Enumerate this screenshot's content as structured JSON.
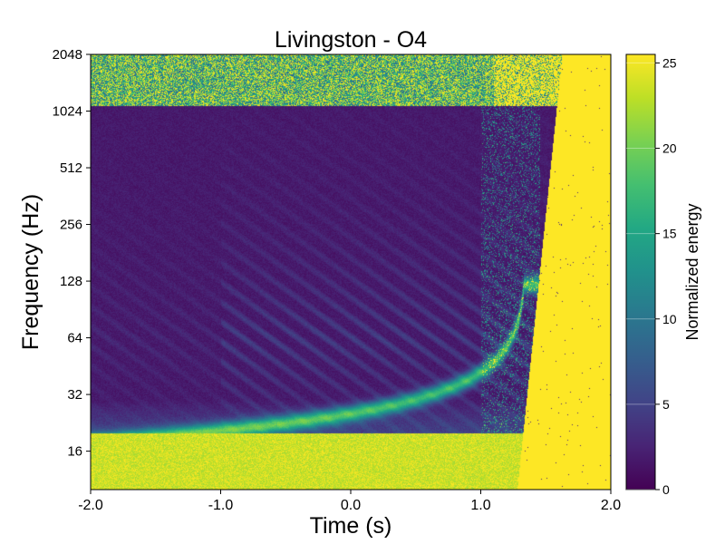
{
  "chart_data": {
    "type": "heatmap",
    "title": "Livingston - O4",
    "xlabel": "Time (s)",
    "ylabel": "Frequency (Hz)",
    "x_ticks": [
      "-2.0",
      "-1.0",
      "0.0",
      "1.0",
      "2.0"
    ],
    "x_tick_values": [
      -2.0,
      -1.0,
      0.0,
      1.0,
      2.0
    ],
    "xlim": [
      -2.0,
      2.0
    ],
    "y_scale": "log2",
    "y_ticks": [
      "16",
      "32",
      "64",
      "128",
      "256",
      "512",
      "1024",
      "2048"
    ],
    "y_tick_values": [
      16,
      32,
      64,
      128,
      256,
      512,
      1024,
      2048
    ],
    "ylim": [
      10,
      2048
    ],
    "colorbar": {
      "label": "Normalized energy",
      "ticks": [
        "0",
        "5",
        "10",
        "15",
        "20",
        "25"
      ],
      "tick_values": [
        0,
        5,
        10,
        15,
        20,
        25
      ],
      "range": [
        0,
        25.5
      ],
      "colormap": "viridis"
    },
    "features": {
      "chirp_end_time": 1.2,
      "bright_region_after_time": 1.3,
      "high_freq_noise_band_hz": [
        1100,
        2048
      ],
      "low_freq_bright_below_hz": 20
    },
    "grid": false,
    "legend": "none"
  },
  "colors": {
    "viridis_low": "#440154",
    "viridis_high": "#fde725",
    "background": "#ffffff"
  }
}
